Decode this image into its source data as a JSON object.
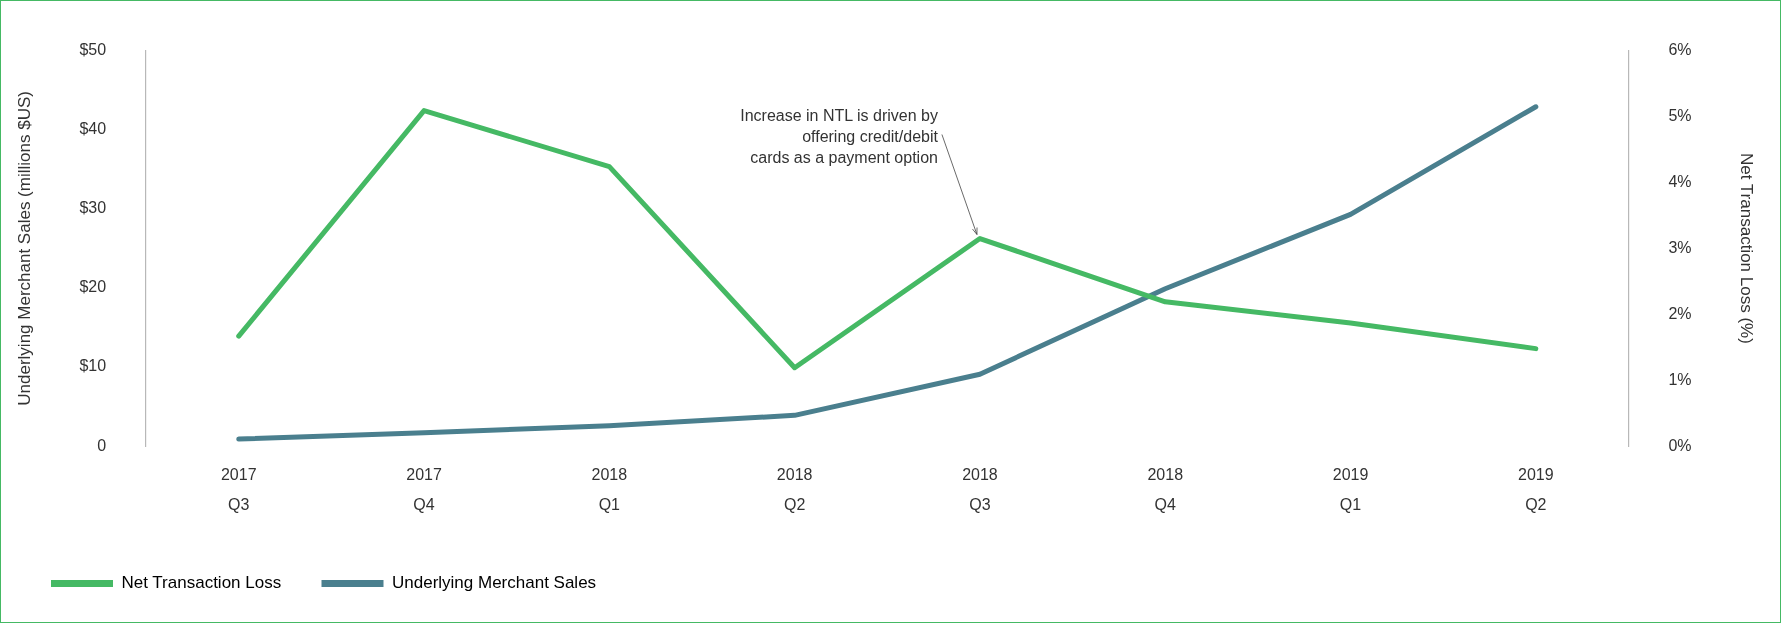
{
  "chart_data": {
    "type": "line",
    "categories": [
      "2017 Q3",
      "2017 Q4",
      "2018 Q1",
      "2018 Q2",
      "2018 Q3",
      "2018 Q4",
      "2019 Q1",
      "2019 Q2"
    ],
    "series": [
      {
        "name": "Net Transaction Loss",
        "color": "#45b964",
        "axis": "y2",
        "values": [
          1.67,
          5.09,
          4.24,
          1.19,
          3.15,
          2.19,
          1.87,
          1.48
        ]
      },
      {
        "name": "Underlying Merchant Sales",
        "color": "#4a7f8e",
        "values": [
          0.9,
          1.7,
          2.6,
          3.9,
          9.1,
          19.9,
          29.3,
          42.9
        ]
      }
    ],
    "ylabel": "Underlying Merchant Sales (millions $US)",
    "y2label": "Net Transaction Loss (%)",
    "ylim": [
      0,
      50
    ],
    "yticks": [
      {
        "value": 0,
        "label": "0"
      },
      {
        "value": 10,
        "label": "$10"
      },
      {
        "value": 20,
        "label": "$20"
      },
      {
        "value": 30,
        "label": "$30"
      },
      {
        "value": 40,
        "label": "$40"
      },
      {
        "value": 50,
        "label": "$50"
      }
    ],
    "y2lim": [
      0,
      6
    ],
    "y2ticks": [
      {
        "value": 0,
        "label": "0%"
      },
      {
        "value": 1,
        "label": "1%"
      },
      {
        "value": 2,
        "label": "2%"
      },
      {
        "value": 3,
        "label": "3%"
      },
      {
        "value": 4,
        "label": "4%"
      },
      {
        "value": 5,
        "label": "5%"
      },
      {
        "value": 6,
        "label": "6%"
      }
    ],
    "annotations": [
      {
        "text": "Increase in NTL is driven by\noffering credit/debit\ncards as a payment option",
        "x": "2018 Q3",
        "y": 26
      }
    ],
    "grid": false,
    "legend": "bottom",
    "marker": "none",
    "line_style": "solid"
  }
}
